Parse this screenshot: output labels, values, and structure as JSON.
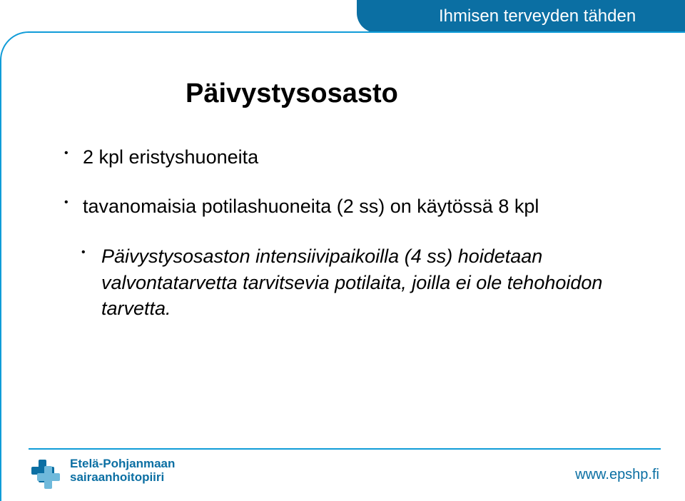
{
  "header": {
    "tagline": "Ihmisen terveyden tähden"
  },
  "title": "Päivystysosasto",
  "bullets": [
    {
      "text": "2 kpl eristyshuoneita"
    },
    {
      "text": "tavanomaisia potilashuoneita (2 ss) on käytössä 8 kpl"
    }
  ],
  "sub_bullet": "Päivystysosaston intensiivipaikoilla (4 ss) hoidetaan valvontatarvetta tarvitsevia potilaita, joilla ei ole tehohoidon tarvetta.",
  "footer": {
    "org_line1": "Etelä-Pohjanmaan",
    "org_line2": "sairaanhoitopiiri",
    "url": "www.epshp.fi"
  },
  "colors": {
    "brand_dark": "#0b6fa3",
    "brand_light": "#109cd8",
    "text": "#000000",
    "background": "#ffffff"
  },
  "typography": {
    "title_pt": 38,
    "body_pt": 27,
    "header_pt": 24,
    "footer_pt": 17,
    "url_pt": 20,
    "family": "Trebuchet MS"
  }
}
